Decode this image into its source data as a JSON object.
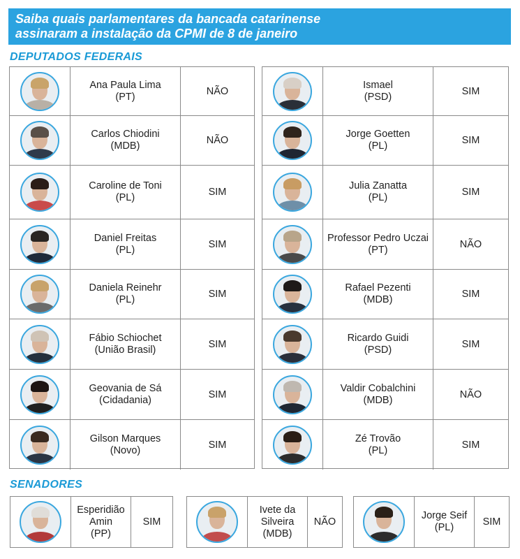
{
  "banner": {
    "line1": "Saiba quais parlamentares da bancada catarinense",
    "line2": "assinaram a instalação da CPMI de 8 de janeiro"
  },
  "sections": {
    "deputados": "DEPUTADOS FEDERAIS",
    "senadores": "SENADORES"
  },
  "deputados_left": [
    {
      "name": "Ana Paula Lima",
      "party": "(PT)",
      "vote": "NÃO",
      "hair": "#c9a46a",
      "suit": "#b8b0a6"
    },
    {
      "name": "Carlos Chiodini",
      "party": "(MDB)",
      "vote": "NÃO",
      "hair": "#5a5048",
      "suit": "#2f3a4a"
    },
    {
      "name": "Caroline de Toni",
      "party": "(PL)",
      "vote": "SIM",
      "hair": "#2a1d18",
      "suit": "#c94b4b"
    },
    {
      "name": "Daniel Freitas",
      "party": "(PL)",
      "vote": "SIM",
      "hair": "#2a2522",
      "suit": "#1f2a3a"
    },
    {
      "name": "Daniela Reinehr",
      "party": "(PL)",
      "vote": "SIM",
      "hair": "#c8a36b",
      "suit": "#6b6b6b"
    },
    {
      "name": "Fábio Schiochet",
      "party": "(União Brasil)",
      "vote": "SIM",
      "hair": "#cfc3b5",
      "suit": "#25303d"
    },
    {
      "name": "Geovania de Sá",
      "party": "(Cidadania)",
      "vote": "SIM",
      "hair": "#1c1412",
      "suit": "#1f1f1f"
    },
    {
      "name": "Gilson Marques",
      "party": "(Novo)",
      "vote": "SIM",
      "hair": "#3a2a20",
      "suit": "#2b3544"
    }
  ],
  "deputados_right": [
    {
      "name": "Ismael",
      "party": "(PSD)",
      "vote": "SIM",
      "hair": "#d8cfc6",
      "suit": "#2a2f38"
    },
    {
      "name": "Jorge Goetten",
      "party": "(PL)",
      "vote": "SIM",
      "hair": "#2f241c",
      "suit": "#1f2633"
    },
    {
      "name": "Julia Zanatta",
      "party": "(PL)",
      "vote": "SIM",
      "hair": "#c89c63",
      "suit": "#6e8fa8"
    },
    {
      "name": "Professor Pedro Uczai",
      "party": "(PT)",
      "vote": "NÃO",
      "hair": "#b8a58a",
      "suit": "#4a4a4a"
    },
    {
      "name": "Rafael Pezenti",
      "party": "(MDB)",
      "vote": "SIM",
      "hair": "#1e1a18",
      "suit": "#27313f"
    },
    {
      "name": "Ricardo Guidi",
      "party": "(PSD)",
      "vote": "SIM",
      "hair": "#4a3a2e",
      "suit": "#2a2f3a"
    },
    {
      "name": "Valdir Cobalchini",
      "party": "(MDB)",
      "vote": "NÃO",
      "hair": "#bfb8b0",
      "suit": "#1f2733"
    },
    {
      "name": "Zé Trovão",
      "party": "(PL)",
      "vote": "SIM",
      "hair": "#2a1e16",
      "suit": "#2c2c2c"
    }
  ],
  "senadores": [
    {
      "name": "Esperidião Amin",
      "party": "(PP)",
      "vote": "SIM",
      "hair": "#e0ddd8",
      "suit": "#b23a3a"
    },
    {
      "name": "Ivete da Silveira",
      "party": "(MDB)",
      "vote": "NÃO",
      "hair": "#c9a26a",
      "suit": "#c24d4d"
    },
    {
      "name": "Jorge Seif",
      "party": "(PL)",
      "vote": "SIM",
      "hair": "#2a2018",
      "suit": "#2c2c2c"
    }
  ]
}
